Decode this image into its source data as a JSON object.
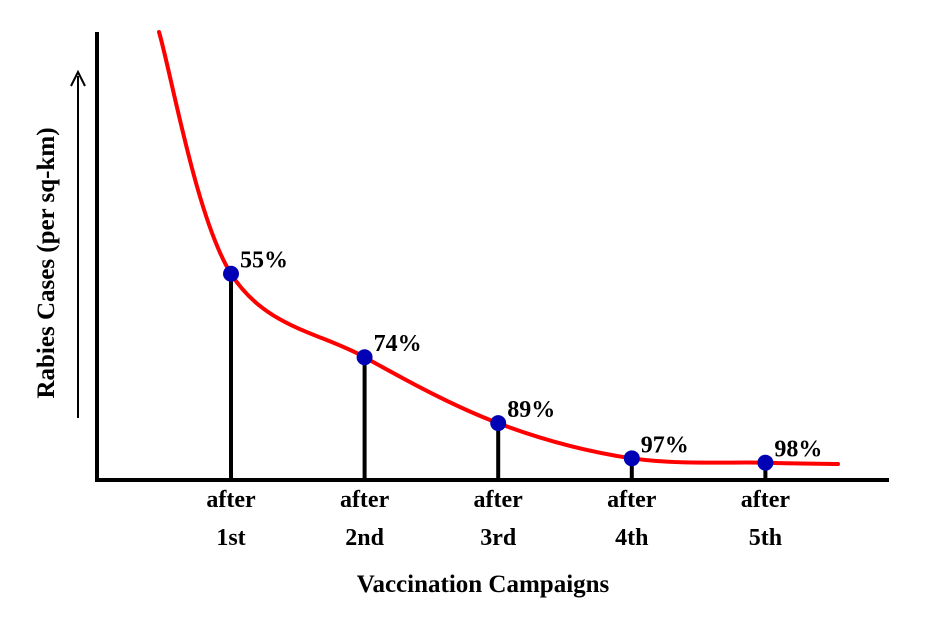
{
  "chart_data": {
    "type": "line",
    "title": "",
    "xlabel": "Vaccination Campaigns",
    "ylabel": "Rabies Cases (per sq-km)",
    "categories": [
      [
        "after",
        "1st"
      ],
      [
        "after",
        "2nd"
      ],
      [
        "after",
        "3rd"
      ],
      [
        "after",
        "4th"
      ],
      [
        "after",
        "5th"
      ]
    ],
    "point_labels": [
      "55%",
      "74%",
      "89%",
      "97%",
      "98%"
    ],
    "reduction_percent": [
      55,
      74,
      89,
      97,
      98
    ],
    "relative_cases": [
      45,
      26,
      11,
      3,
      2
    ],
    "initial_relative_cases": 100,
    "ylim": [
      0,
      100
    ],
    "y_axis_arrow": true,
    "grid": false,
    "legend": "none",
    "colors": {
      "curve": "#ff0000",
      "points": "#0000b4",
      "axes": "#000000",
      "stems": "#000000"
    }
  }
}
